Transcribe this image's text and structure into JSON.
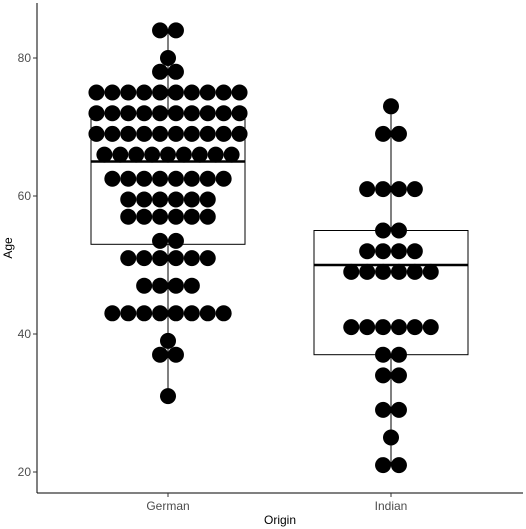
{
  "chart_data": {
    "type": "box-dotplot",
    "title": "",
    "xlabel": "Origin",
    "ylabel": "Age",
    "categories": [
      "German",
      "Indian"
    ],
    "yticks": [
      20,
      40,
      60,
      80
    ],
    "ylim": [
      17.5,
      87.5
    ],
    "grid": false,
    "legend": "none",
    "colors": {
      "dots": "#000000",
      "box_outline": "#000000",
      "background": "#ffffff"
    },
    "boxes": [
      {
        "group": "German",
        "min": 31,
        "q1": 53,
        "median": 65,
        "q3": 72,
        "max": 84
      },
      {
        "group": "Indian",
        "min": 21,
        "q1": 37,
        "median": 50,
        "q3": 55,
        "max": 73
      }
    ],
    "dot_rows": [
      {
        "group": "German",
        "age": 84,
        "count": 2
      },
      {
        "group": "German",
        "age": 80,
        "count": 1
      },
      {
        "group": "German",
        "age": 78,
        "count": 2
      },
      {
        "group": "German",
        "age": 75,
        "count": 10
      },
      {
        "group": "German",
        "age": 72,
        "count": 10
      },
      {
        "group": "German",
        "age": 69,
        "count": 10
      },
      {
        "group": "German",
        "age": 66,
        "count": 9
      },
      {
        "group": "German",
        "age": 62.5,
        "count": 8
      },
      {
        "group": "German",
        "age": 59.5,
        "count": 6
      },
      {
        "group": "German",
        "age": 57,
        "count": 6
      },
      {
        "group": "German",
        "age": 53.5,
        "count": 2
      },
      {
        "group": "German",
        "age": 51,
        "count": 6
      },
      {
        "group": "German",
        "age": 47,
        "count": 4
      },
      {
        "group": "German",
        "age": 43,
        "count": 8
      },
      {
        "group": "German",
        "age": 39,
        "count": 1
      },
      {
        "group": "German",
        "age": 37,
        "count": 2
      },
      {
        "group": "German",
        "age": 31,
        "count": 1
      },
      {
        "group": "Indian",
        "age": 73,
        "count": 1
      },
      {
        "group": "Indian",
        "age": 69,
        "count": 2
      },
      {
        "group": "Indian",
        "age": 61,
        "count": 4
      },
      {
        "group": "Indian",
        "age": 55,
        "count": 2
      },
      {
        "group": "Indian",
        "age": 52,
        "count": 4
      },
      {
        "group": "Indian",
        "age": 49,
        "count": 6
      },
      {
        "group": "Indian",
        "age": 41,
        "count": 6
      },
      {
        "group": "Indian",
        "age": 37,
        "count": 2
      },
      {
        "group": "Indian",
        "age": 34,
        "count": 2
      },
      {
        "group": "Indian",
        "age": 29,
        "count": 2
      },
      {
        "group": "Indian",
        "age": 25,
        "count": 1
      },
      {
        "group": "Indian",
        "age": 21,
        "count": 2
      }
    ]
  }
}
